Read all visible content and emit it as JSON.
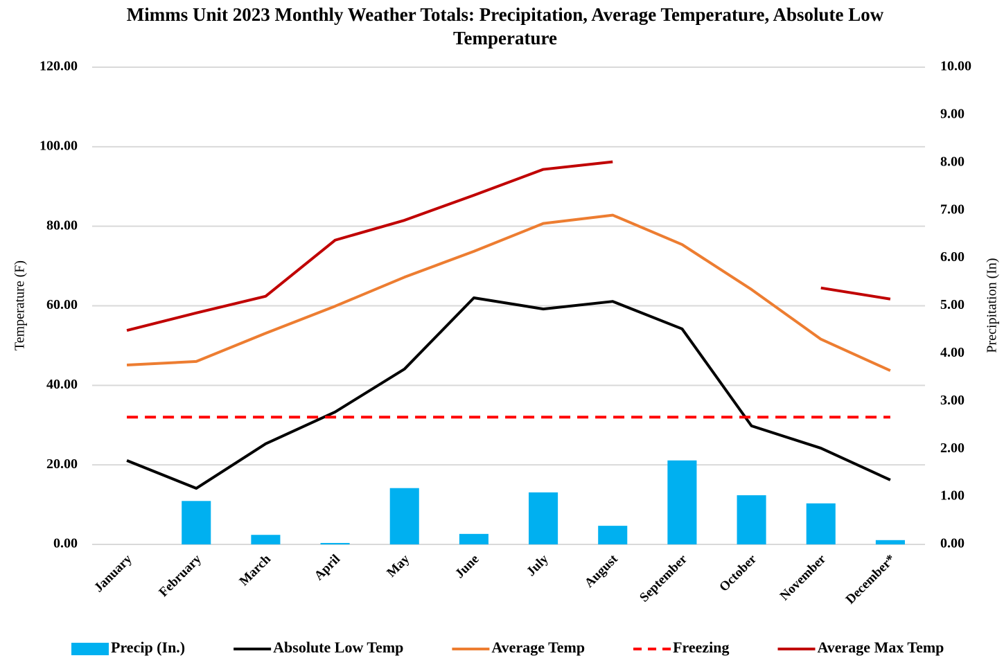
{
  "chart_data": {
    "type": "combo",
    "title": "Mimms Unit 2023 Monthly Weather Totals: Precipitation, Average Temperature, Absolute Low Temperature",
    "y_label": "Temperature (F)",
    "y2_label": "Precipitation (In)",
    "categories": [
      "January",
      "February",
      "March",
      "April",
      "May",
      "June",
      "July",
      "August",
      "September",
      "October",
      "November",
      "December*"
    ],
    "ylim": [
      0,
      120
    ],
    "yticks": [
      {
        "value": 0,
        "label": "0.00"
      },
      {
        "value": 20,
        "label": "20.00"
      },
      {
        "value": 40,
        "label": "40.00"
      },
      {
        "value": 60,
        "label": "60.00"
      },
      {
        "value": 80,
        "label": "80.00"
      },
      {
        "value": 100,
        "label": "100.00"
      },
      {
        "value": 120,
        "label": "120.00"
      }
    ],
    "y2lim": [
      0,
      10
    ],
    "y2ticks": [
      {
        "value": 0,
        "label": "0.00"
      },
      {
        "value": 1,
        "label": "1.00"
      },
      {
        "value": 2,
        "label": "2.00"
      },
      {
        "value": 3,
        "label": "3.00"
      },
      {
        "value": 4,
        "label": "4.00"
      },
      {
        "value": 5,
        "label": "5.00"
      },
      {
        "value": 6,
        "label": "6.00"
      },
      {
        "value": 7,
        "label": "7.00"
      },
      {
        "value": 8,
        "label": "8.00"
      },
      {
        "value": 9,
        "label": "9.00"
      },
      {
        "value": 10,
        "label": "10.00"
      }
    ],
    "grid": true,
    "legend": "bottom",
    "series": [
      {
        "name": "Precip (In.)",
        "type": "bar",
        "axis": "y2",
        "color": "#00b0f0",
        "values": [
          0,
          0.91,
          0.2,
          0.03,
          1.18,
          0.22,
          1.09,
          0.39,
          1.76,
          1.03,
          0.86,
          0.09
        ]
      },
      {
        "name": "Absolute Low Temp",
        "type": "line",
        "color": "#000000",
        "values": [
          21.1,
          14.1,
          25.3,
          33.3,
          44.1,
          62.0,
          59.2,
          61.1,
          54.2,
          29.8,
          24.2,
          16.2
        ]
      },
      {
        "name": "Average Temp",
        "type": "line",
        "color": "#ed7d31",
        "values": [
          45.1,
          46.0,
          53.1,
          59.9,
          67.2,
          73.7,
          80.7,
          82.8,
          75.4,
          64.1,
          51.6,
          43.7
        ]
      },
      {
        "name": "Freezing",
        "type": "line",
        "dashed": true,
        "color": "#ff0000",
        "values": [
          32,
          32,
          32,
          32,
          32,
          32,
          32,
          32,
          32,
          32,
          32,
          32
        ]
      },
      {
        "name": "Average Max Temp",
        "type": "line",
        "color": "#c00000",
        "values": [
          53.8,
          58.2,
          62.4,
          76.5,
          81.5,
          87.8,
          94.3,
          96.2,
          null,
          null,
          64.5,
          61.7
        ]
      }
    ]
  }
}
